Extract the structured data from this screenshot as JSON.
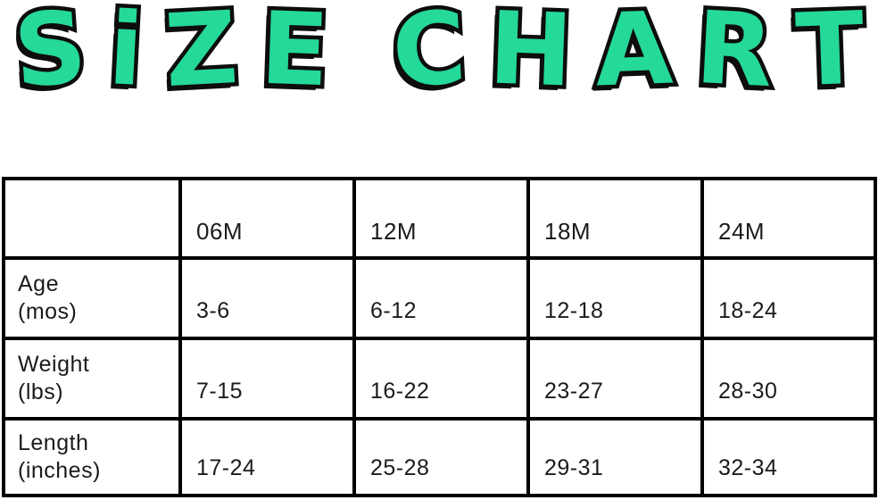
{
  "title": {
    "word1": "SiZE",
    "word2": "CHART"
  },
  "colors": {
    "title_fill": "#25D998",
    "title_outline": "#0d0d0d",
    "table_border": "#000000",
    "text": "#1b1b1b",
    "background": "#ffffff"
  },
  "table": {
    "headers": [
      "06M",
      "12M",
      "18M",
      "24M"
    ],
    "rows": [
      {
        "label_line1": "Age",
        "label_line2": "(mos)",
        "values": [
          "3-6",
          "6-12",
          "12-18",
          "18-24"
        ]
      },
      {
        "label_line1": "Weight",
        "label_line2": "(lbs)",
        "values": [
          "7-15",
          "16-22",
          "23-27",
          "28-30"
        ]
      },
      {
        "label_line1": "Length",
        "label_line2": "(inches)",
        "values": [
          "17-24",
          "25-28",
          "29-31",
          "32-34"
        ]
      }
    ]
  },
  "chart_data": {
    "type": "table",
    "title": "SIZE CHART",
    "columns": [
      "",
      "06M",
      "12M",
      "18M",
      "24M"
    ],
    "rows": [
      {
        "label": "Age (mos)",
        "values": [
          "3-6",
          "6-12",
          "12-18",
          "18-24"
        ]
      },
      {
        "label": "Weight (lbs)",
        "values": [
          "7-15",
          "16-22",
          "23-27",
          "28-30"
        ]
      },
      {
        "label": "Length (inches)",
        "values": [
          "17-24",
          "25-28",
          "29-31",
          "32-34"
        ]
      }
    ]
  }
}
